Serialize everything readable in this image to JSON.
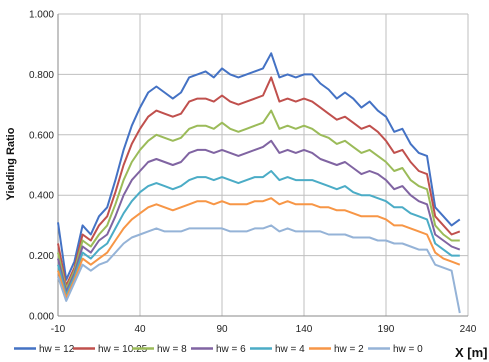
{
  "chart_data": {
    "type": "line",
    "title": "",
    "xlabel": "X [m]",
    "ylabel": "Yielding Ratio",
    "xlim": [
      -10,
      240
    ],
    "ylim": [
      0,
      1
    ],
    "x_ticks": [
      "-10",
      "40",
      "90",
      "140",
      "190",
      "240"
    ],
    "y_ticks": [
      "0.000",
      "0.200",
      "0.400",
      "0.600",
      "0.800",
      "1.000"
    ],
    "grid": true,
    "legend_position": "bottom",
    "x": [
      -10,
      -5,
      0,
      5,
      10,
      15,
      20,
      25,
      30,
      35,
      40,
      45,
      50,
      55,
      60,
      65,
      70,
      75,
      80,
      85,
      90,
      95,
      100,
      105,
      110,
      115,
      120,
      125,
      130,
      135,
      140,
      145,
      150,
      155,
      160,
      165,
      170,
      175,
      180,
      185,
      190,
      195,
      200,
      205,
      210,
      215,
      220,
      225,
      230,
      235
    ],
    "series": [
      {
        "name": "hw = 12",
        "color": "#4472C4",
        "values": [
          0.31,
          0.12,
          0.18,
          0.3,
          0.27,
          0.33,
          0.36,
          0.45,
          0.55,
          0.63,
          0.69,
          0.74,
          0.76,
          0.74,
          0.72,
          0.74,
          0.79,
          0.8,
          0.81,
          0.79,
          0.82,
          0.8,
          0.79,
          0.8,
          0.81,
          0.82,
          0.87,
          0.79,
          0.8,
          0.79,
          0.8,
          0.8,
          0.77,
          0.75,
          0.72,
          0.74,
          0.72,
          0.69,
          0.71,
          0.68,
          0.66,
          0.61,
          0.62,
          0.57,
          0.54,
          0.53,
          0.36,
          0.33,
          0.3,
          0.32
        ]
      },
      {
        "name": "hw = 10.25",
        "color": "#C0504D",
        "values": [
          0.24,
          0.1,
          0.16,
          0.27,
          0.25,
          0.3,
          0.33,
          0.41,
          0.5,
          0.57,
          0.62,
          0.66,
          0.68,
          0.67,
          0.66,
          0.67,
          0.71,
          0.72,
          0.72,
          0.71,
          0.73,
          0.71,
          0.7,
          0.71,
          0.72,
          0.73,
          0.79,
          0.71,
          0.72,
          0.71,
          0.72,
          0.71,
          0.69,
          0.67,
          0.65,
          0.66,
          0.64,
          0.62,
          0.63,
          0.61,
          0.58,
          0.54,
          0.55,
          0.51,
          0.48,
          0.47,
          0.33,
          0.3,
          0.27,
          0.28
        ]
      },
      {
        "name": "hw = 8",
        "color": "#9BBB59",
        "values": [
          0.21,
          0.09,
          0.15,
          0.25,
          0.23,
          0.27,
          0.3,
          0.37,
          0.45,
          0.51,
          0.55,
          0.58,
          0.6,
          0.59,
          0.58,
          0.59,
          0.62,
          0.63,
          0.63,
          0.62,
          0.64,
          0.62,
          0.61,
          0.62,
          0.63,
          0.64,
          0.68,
          0.62,
          0.63,
          0.62,
          0.63,
          0.62,
          0.6,
          0.59,
          0.57,
          0.58,
          0.56,
          0.54,
          0.55,
          0.53,
          0.51,
          0.48,
          0.49,
          0.45,
          0.43,
          0.42,
          0.3,
          0.27,
          0.25,
          0.25
        ]
      },
      {
        "name": "hw = 6",
        "color": "#8064A2",
        "values": [
          0.19,
          0.08,
          0.14,
          0.23,
          0.21,
          0.25,
          0.27,
          0.33,
          0.4,
          0.45,
          0.48,
          0.51,
          0.52,
          0.51,
          0.5,
          0.51,
          0.54,
          0.55,
          0.55,
          0.54,
          0.55,
          0.54,
          0.53,
          0.54,
          0.55,
          0.56,
          0.58,
          0.54,
          0.55,
          0.54,
          0.55,
          0.54,
          0.52,
          0.51,
          0.5,
          0.51,
          0.49,
          0.47,
          0.48,
          0.47,
          0.45,
          0.42,
          0.43,
          0.4,
          0.38,
          0.37,
          0.27,
          0.25,
          0.23,
          0.22
        ]
      },
      {
        "name": "hw = 4",
        "color": "#4BACC6",
        "values": [
          0.17,
          0.07,
          0.13,
          0.21,
          0.19,
          0.22,
          0.24,
          0.29,
          0.34,
          0.38,
          0.41,
          0.43,
          0.44,
          0.43,
          0.42,
          0.43,
          0.45,
          0.46,
          0.46,
          0.45,
          0.46,
          0.45,
          0.44,
          0.45,
          0.46,
          0.46,
          0.48,
          0.45,
          0.46,
          0.45,
          0.45,
          0.45,
          0.44,
          0.43,
          0.42,
          0.43,
          0.41,
          0.4,
          0.4,
          0.39,
          0.38,
          0.36,
          0.36,
          0.34,
          0.33,
          0.32,
          0.24,
          0.22,
          0.2,
          0.2
        ]
      },
      {
        "name": "hw = 2",
        "color": "#F79646",
        "values": [
          0.15,
          0.06,
          0.12,
          0.19,
          0.17,
          0.19,
          0.21,
          0.25,
          0.29,
          0.32,
          0.34,
          0.36,
          0.37,
          0.36,
          0.35,
          0.36,
          0.37,
          0.38,
          0.38,
          0.37,
          0.38,
          0.37,
          0.37,
          0.37,
          0.38,
          0.38,
          0.39,
          0.37,
          0.38,
          0.37,
          0.37,
          0.37,
          0.36,
          0.36,
          0.35,
          0.35,
          0.34,
          0.33,
          0.33,
          0.33,
          0.32,
          0.3,
          0.3,
          0.29,
          0.28,
          0.27,
          0.21,
          0.19,
          0.18,
          0.17
        ]
      },
      {
        "name": "hw = 0",
        "color": "#95B3D7",
        "values": [
          0.13,
          0.05,
          0.11,
          0.17,
          0.15,
          0.17,
          0.18,
          0.21,
          0.24,
          0.26,
          0.27,
          0.28,
          0.29,
          0.28,
          0.28,
          0.28,
          0.29,
          0.29,
          0.29,
          0.29,
          0.29,
          0.28,
          0.28,
          0.28,
          0.29,
          0.29,
          0.3,
          0.28,
          0.29,
          0.28,
          0.28,
          0.28,
          0.28,
          0.27,
          0.27,
          0.27,
          0.26,
          0.26,
          0.26,
          0.25,
          0.25,
          0.24,
          0.24,
          0.23,
          0.22,
          0.22,
          0.17,
          0.16,
          0.15,
          0.01
        ]
      }
    ]
  }
}
